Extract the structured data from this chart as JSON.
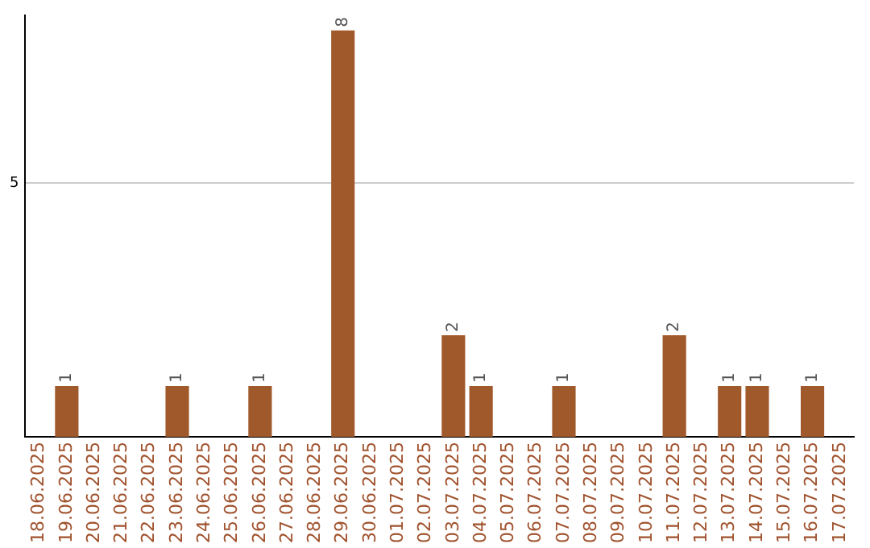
{
  "chart_data": {
    "type": "bar",
    "categories": [
      "18.06.2025",
      "19.06.2025",
      "20.06.2025",
      "21.06.2025",
      "22.06.2025",
      "23.06.2025",
      "24.06.2025",
      "25.06.2025",
      "26.06.2025",
      "27.06.2025",
      "28.06.2025",
      "29.06.2025",
      "30.06.2025",
      "01.07.2025",
      "02.07.2025",
      "03.07.2025",
      "04.07.2025",
      "05.07.2025",
      "06.07.2025",
      "07.07.2025",
      "08.07.2025",
      "09.07.2025",
      "10.07.2025",
      "11.07.2025",
      "12.07.2025",
      "13.07.2025",
      "14.07.2025",
      "15.07.2025",
      "16.07.2025",
      "17.07.2025"
    ],
    "values": [
      0,
      1,
      0,
      0,
      0,
      1,
      0,
      0,
      1,
      0,
      0,
      8,
      0,
      0,
      0,
      2,
      1,
      0,
      0,
      1,
      0,
      0,
      0,
      2,
      0,
      1,
      1,
      0,
      1,
      0
    ],
    "value_labels": [
      null,
      "1",
      null,
      null,
      null,
      "1",
      null,
      null,
      "1",
      null,
      null,
      "8",
      null,
      null,
      null,
      "2",
      "1",
      null,
      null,
      "1",
      null,
      null,
      null,
      "2",
      null,
      "1",
      "1",
      null,
      "1",
      null
    ],
    "color": "#a0592b",
    "ylim": [
      0,
      8.3
    ],
    "yticks": [
      {
        "value": 5,
        "label": "5"
      }
    ],
    "grid": "y",
    "legend": false
  }
}
